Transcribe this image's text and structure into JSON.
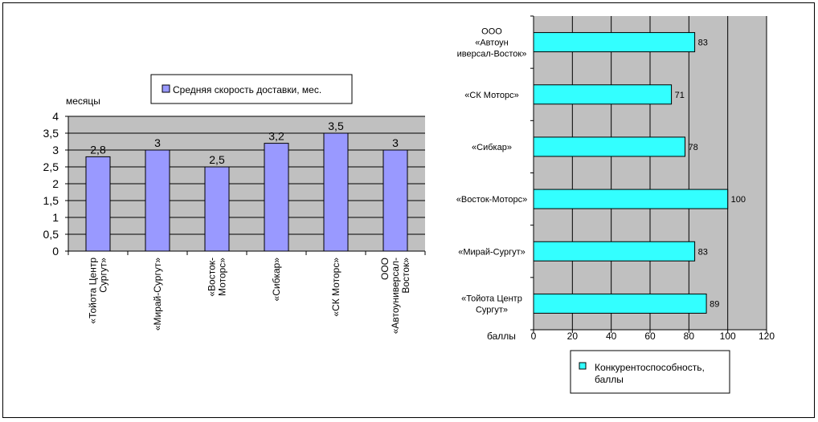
{
  "chart_data": [
    {
      "type": "bar",
      "ylabel": "месяцы",
      "ylim": [
        0,
        4
      ],
      "yticks": [
        "0",
        "0,5",
        "1",
        "1,5",
        "2",
        "2,5",
        "3",
        "3,5",
        "4"
      ],
      "categories": [
        [
          "«Тойота Центр",
          "Сургут»"
        ],
        [
          "«Мирай-Сургут»"
        ],
        [
          "«Восток-",
          "Моторс»"
        ],
        [
          "«Сибкар»"
        ],
        [
          "«СК Моторс»"
        ],
        [
          "ООО",
          "«Автоуниверсал-",
          "Восток»"
        ]
      ],
      "values": [
        2.8,
        3,
        2.5,
        3.2,
        3.5,
        3
      ],
      "value_labels": [
        "2,8",
        "3",
        "2,5",
        "3,2",
        "3,5",
        "3"
      ],
      "legend": "Средняя скорость доставки, мес.",
      "legend_position": "top",
      "grid": true,
      "color": "#9999ff"
    },
    {
      "type": "bar",
      "orientation": "horizontal",
      "xlabel": "баллы",
      "xlim": [
        0,
        120
      ],
      "xticks": [
        "0",
        "20",
        "40",
        "60",
        "80",
        "100",
        "120"
      ],
      "categories": [
        [
          "ООО",
          "«Автоун",
          "иверсал-Восток»"
        ],
        [
          "«СК Моторс»"
        ],
        [
          "«Сибкар»"
        ],
        [
          "«Восток-Моторс»"
        ],
        [
          "«Мирай-Сургут»"
        ],
        [
          "«Тойота Центр",
          "Сургут»"
        ]
      ],
      "values": [
        83,
        71,
        78,
        100,
        83,
        89
      ],
      "value_labels": [
        "83",
        "71",
        "78",
        "100",
        "83",
        "89"
      ],
      "legend": [
        "Конкурентоспособность,",
        "баллы"
      ],
      "legend_position": "bottom",
      "grid": true,
      "color": "#33ffff"
    }
  ]
}
